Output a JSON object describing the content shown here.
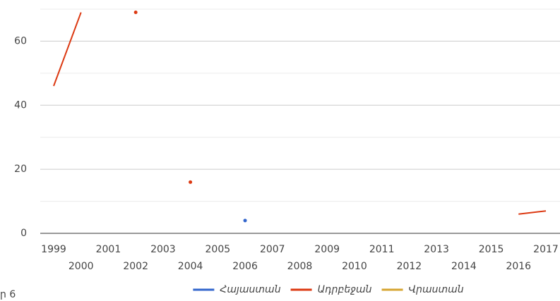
{
  "chart_data": {
    "type": "line",
    "x": [
      1999,
      2000,
      2001,
      2002,
      2003,
      2004,
      2005,
      2006,
      2007,
      2008,
      2009,
      2010,
      2011,
      2012,
      2013,
      2014,
      2015,
      2016,
      2017
    ],
    "xlim": [
      1999,
      2017
    ],
    "series": [
      {
        "name": "Հայաստան",
        "color": "#3366cc",
        "values": [
          null,
          null,
          null,
          null,
          null,
          null,
          null,
          4,
          null,
          null,
          null,
          null,
          null,
          null,
          null,
          null,
          null,
          null,
          null
        ]
      },
      {
        "name": "Ադրբեջան",
        "color": "#dc3912",
        "values": [
          46,
          69,
          null,
          69,
          null,
          16,
          null,
          null,
          null,
          null,
          null,
          null,
          null,
          null,
          null,
          null,
          null,
          6,
          7
        ]
      },
      {
        "name": "Վրաստան",
        "color": "#d6a531",
        "values": [
          null,
          null,
          null,
          null,
          null,
          null,
          null,
          null,
          null,
          null,
          null,
          null,
          null,
          null,
          null,
          null,
          null,
          null,
          null
        ]
      }
    ],
    "ylim": [
      0,
      70
    ],
    "yticks": [
      0,
      20,
      40,
      60
    ],
    "minor_yticks": [
      10,
      30,
      50,
      70
    ],
    "grid": true,
    "legend": "bottom",
    "annotation": "ր 6"
  }
}
